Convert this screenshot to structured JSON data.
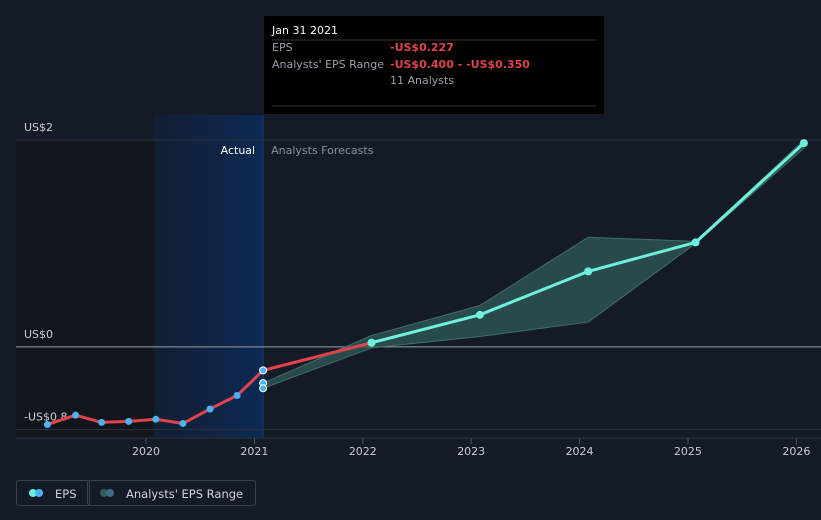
{
  "chart_data": {
    "type": "line",
    "xlim": [
      2018.8,
      2026.08
    ],
    "ylim": [
      -0.9,
      2
    ],
    "xticks": [
      2020,
      2021,
      2022,
      2023,
      2024,
      2025,
      2026
    ],
    "yticks": [
      {
        "value": 2,
        "label": "US$2"
      },
      {
        "value": 0,
        "label": "US$0"
      },
      {
        "value": -0.8,
        "label": "-US$0.8"
      }
    ],
    "actual_label": "Actual",
    "forecast_label": "Analysts Forecasts",
    "forecast_start": 2021.08,
    "series": [
      {
        "name": "EPS",
        "color": "#e0434b",
        "forecast_color": "#6ff0dc",
        "x": [
          2019.09,
          2019.35,
          2019.59,
          2019.84,
          2020.09,
          2020.34,
          2020.59,
          2020.84,
          2021.08,
          2022.08,
          2023.08,
          2024.08,
          2025.07,
          2026.07
        ],
        "values": [
          -0.75,
          -0.66,
          -0.73,
          -0.72,
          -0.7,
          -0.74,
          -0.6,
          -0.47,
          -0.227,
          0.04,
          0.31,
          0.73,
          1.01,
          1.97
        ]
      },
      {
        "name": "Analysts' EPS Range",
        "color": "#2f5b58",
        "x": [
          2021.08,
          2022.08,
          2023.08,
          2024.08,
          2025.07,
          2026.07
        ],
        "low": [
          -0.4,
          -0.01,
          0.1,
          0.24,
          1.0,
          1.92
        ],
        "high": [
          -0.35,
          0.11,
          0.4,
          1.06,
          1.02,
          2.0
        ]
      }
    ],
    "tooltip": {
      "title": "Jan 31 2021",
      "eps_label": "EPS",
      "eps_value": "-US$0.227",
      "range_label": "Analysts' EPS Range",
      "range_value": "-US$0.400 - -US$0.350",
      "analysts": "11 Analysts"
    }
  }
}
